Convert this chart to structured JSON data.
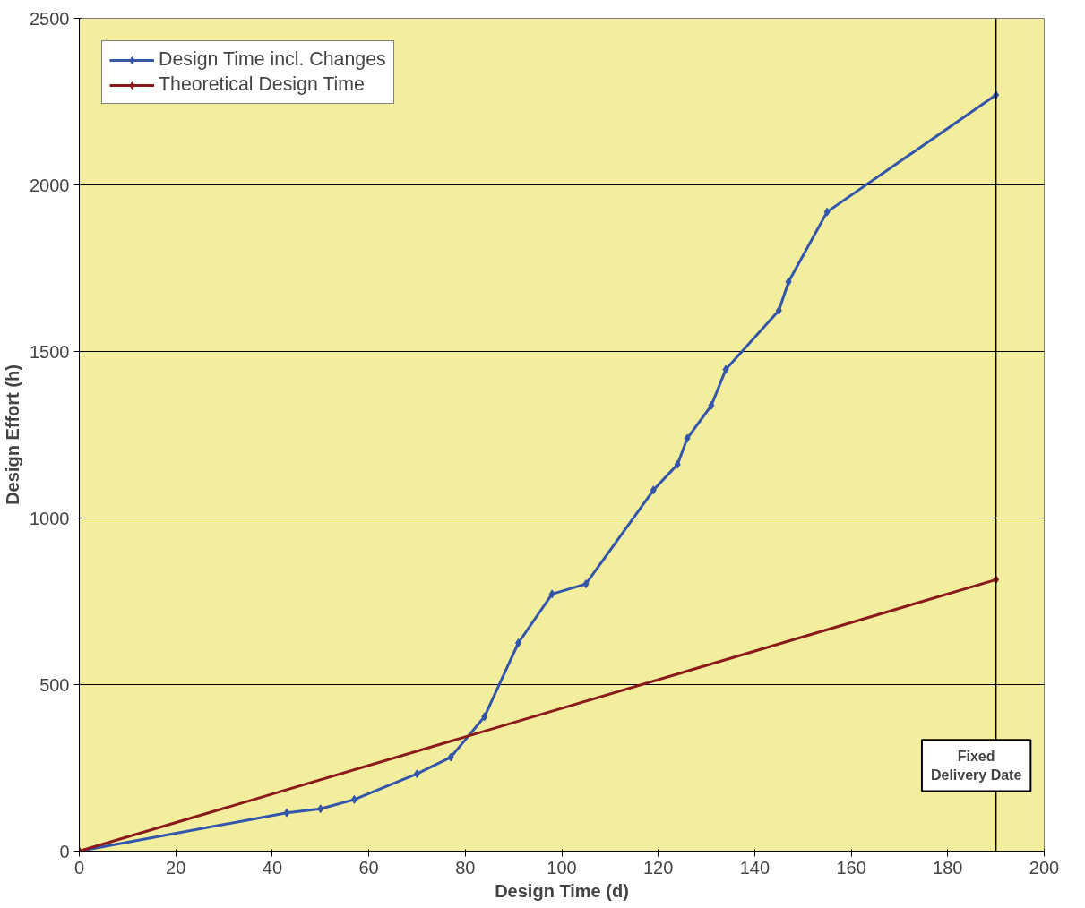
{
  "chart_data": {
    "type": "line",
    "xlabel": "Design Time (d)",
    "ylabel": "Design Effort (h)",
    "series": [
      {
        "name": "Design Time incl. Changes",
        "color": "#3355aa",
        "x": [
          0,
          43,
          50,
          57,
          70,
          77,
          84,
          91,
          98,
          105,
          119,
          124,
          126,
          131,
          134,
          145,
          147,
          155,
          190
        ],
        "values": [
          0,
          115,
          127,
          155,
          232,
          282,
          404,
          625,
          772,
          802,
          1084,
          1161,
          1239,
          1338,
          1446,
          1623,
          1709,
          1919,
          2270
        ]
      },
      {
        "name": "Theoretical Design Time",
        "color": "#8b1a1a",
        "x": [
          0,
          190
        ],
        "values": [
          0,
          815
        ]
      }
    ],
    "xlim": [
      0,
      200
    ],
    "xticks": [
      0,
      20,
      40,
      60,
      80,
      100,
      120,
      140,
      160,
      180,
      200
    ],
    "ylim": [
      0,
      2500
    ],
    "yticks": [
      0,
      500,
      1000,
      1500,
      2000,
      2500
    ],
    "grid": "y",
    "legend": "top left",
    "marker": "diamond",
    "line_style": "solid",
    "ref_lines": [
      {
        "axis": "x",
        "value": 190,
        "label": "Fixed Delivery Date",
        "color": "#000000"
      }
    ]
  }
}
